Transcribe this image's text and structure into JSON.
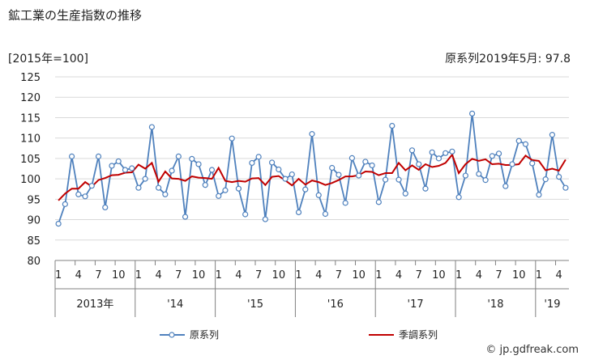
{
  "title": "鉱工業の生産指数の推移",
  "unit_label": "[2015年=100]",
  "latest_label": "原系列2019年5月: 97.8",
  "credit": "© jp.gdfreak.com",
  "colors": {
    "original": "#4f81bd",
    "seasonal": "#c00000",
    "grid": "#d9d9d9",
    "axis": "#808080"
  },
  "chart_data": {
    "type": "line",
    "ylim": [
      80,
      125
    ],
    "yticks": [
      80,
      85,
      90,
      95,
      100,
      105,
      110,
      115,
      120,
      125
    ],
    "month_tick_labels": [
      "1",
      "4",
      "7",
      "10",
      "1",
      "4",
      "7",
      "10",
      "1",
      "4",
      "7",
      "10",
      "1",
      "4",
      "7",
      "10",
      "1",
      "4",
      "7",
      "10",
      "1",
      "4",
      "7",
      "10",
      "1",
      "4"
    ],
    "month_tick_positions": [
      0,
      3,
      6,
      9,
      12,
      15,
      18,
      21,
      24,
      27,
      30,
      33,
      36,
      39,
      42,
      45,
      48,
      51,
      54,
      57,
      60,
      63,
      66,
      69,
      72,
      75
    ],
    "year_labels": [
      "2013年",
      "'14",
      "'15",
      "'16",
      "'17",
      "'18",
      "'19"
    ],
    "x_start": "2013-01",
    "x_end": "2019-05",
    "series": [
      {
        "name": "原系列",
        "marker": "circle",
        "values": [
          89.0,
          93.8,
          105.5,
          96.2,
          95.7,
          98.3,
          105.5,
          93.0,
          103.2,
          104.3,
          102.2,
          102.6,
          97.8,
          100.0,
          112.7,
          97.8,
          96.2,
          102.0,
          105.5,
          90.7,
          104.9,
          103.6,
          98.5,
          102.2,
          95.8,
          97.2,
          109.9,
          97.6,
          91.3,
          103.9,
          105.4,
          90.1,
          104.0,
          102.3,
          100.0,
          101.1,
          91.8,
          97.4,
          111.0,
          96.0,
          91.4,
          102.7,
          101.0,
          94.1,
          105.1,
          100.8,
          104.2,
          103.3,
          94.3,
          99.8,
          113.0,
          99.8,
          96.4,
          107.0,
          103.6,
          97.6,
          106.5,
          105.0,
          106.3,
          106.7,
          95.5,
          100.8,
          116.0,
          101.2,
          99.7,
          105.6,
          106.2,
          98.2,
          103.6,
          109.3,
          108.5,
          103.8,
          96.1,
          99.9,
          110.8,
          100.5,
          97.8
        ]
      },
      {
        "name": "季調系列",
        "marker": "none",
        "values": [
          94.7,
          96.4,
          97.6,
          97.6,
          99.2,
          98.1,
          99.7,
          100.2,
          100.9,
          101.0,
          101.5,
          101.6,
          103.5,
          102.5,
          103.9,
          99.3,
          101.8,
          100.1,
          100.0,
          99.5,
          100.6,
          100.3,
          100.2,
          100.0,
          102.7,
          99.5,
          99.2,
          99.5,
          99.3,
          100.1,
          100.2,
          98.5,
          100.5,
          100.7,
          99.6,
          98.4,
          100.0,
          98.6,
          99.6,
          99.2,
          98.5,
          99.0,
          99.7,
          100.6,
          100.6,
          100.9,
          101.8,
          101.7,
          100.9,
          101.4,
          101.4,
          103.9,
          102.1,
          103.3,
          102.2,
          103.6,
          102.9,
          103.2,
          103.9,
          105.9,
          101.4,
          103.6,
          104.9,
          104.4,
          104.8,
          103.6,
          103.7,
          103.4,
          103.4,
          103.6,
          105.7,
          104.6,
          104.4,
          102.1,
          102.5,
          102.0,
          104.7
        ]
      }
    ]
  }
}
